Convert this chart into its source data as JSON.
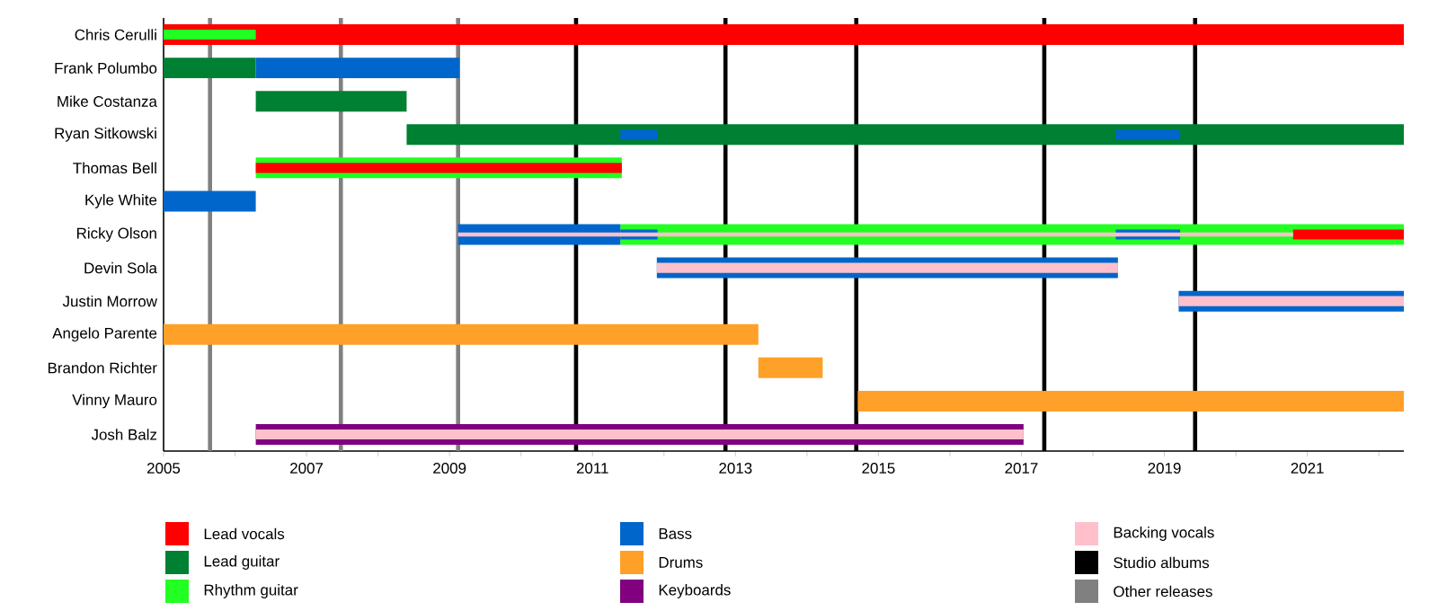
{
  "chart_data": {
    "type": "bar",
    "orientation": "horizontal",
    "legend": "bottom",
    "categories": [
      "Chris Cerulli",
      "Frank Polumbo",
      "Mike Costanza",
      "Ryan Sitkowski",
      "Thomas Bell",
      "Kyle White",
      "Ricky Olson",
      "Devin Sola",
      "Justin Morrow",
      "Angelo Parente",
      "Brandon Richter",
      "Vinny Mauro",
      "Josh Balz"
    ],
    "xlim": [
      2005,
      2022.35
    ],
    "xticks": [
      2005,
      {
        "value": 2006,
        "label": null
      },
      2007,
      {
        "value": 2008,
        "label": null
      },
      2009,
      {
        "value": 2010,
        "label": null
      },
      2011,
      {
        "value": 2012,
        "label": null
      },
      2013,
      {
        "value": 2014,
        "label": null
      },
      2015,
      {
        "value": 2016,
        "label": null
      },
      2017,
      {
        "value": 2018,
        "label": null
      },
      2019,
      {
        "value": 2020,
        "label": null
      },
      2021,
      {
        "value": 2022,
        "label": null
      }
    ],
    "series": [
      {
        "name": "Lead vocals",
        "color": "#ff0000",
        "base": [
          2005,
          null,
          null,
          null,
          null,
          null,
          null,
          null,
          null,
          null,
          null,
          null,
          null
        ],
        "values": [
          17.35,
          null,
          null,
          null,
          null,
          null,
          null,
          null,
          null,
          null,
          null,
          null,
          null
        ]
      },
      {
        "name": "Lead guitar",
        "color": "#008033",
        "base": [
          null,
          2005,
          2006.29,
          2008.4,
          null,
          null,
          null,
          null,
          null,
          null,
          null,
          null,
          null
        ],
        "values": [
          null,
          1.29,
          2.11,
          13.95,
          null,
          null,
          null,
          null,
          null,
          null,
          null,
          null,
          null
        ]
      },
      {
        "name": "Rhythm guitar",
        "color": "#22ff22",
        "base": [
          2005,
          null,
          null,
          null,
          2006.29,
          null,
          2011.39,
          null,
          null,
          null,
          null,
          null,
          null
        ],
        "values": [
          1.29,
          null,
          null,
          null,
          5.12,
          null,
          10.96,
          null,
          null,
          null,
          null,
          null,
          null
        ]
      },
      {
        "name": "Bass",
        "color": "#0066cc",
        "base": [
          null,
          2006.29,
          null,
          2011.39,
          null,
          2005,
          2009.12,
          2011.9,
          2019.2,
          null,
          null,
          null,
          null
        ],
        "values": [
          null,
          2.85,
          null,
          0.52,
          null,
          1.29,
          2.27,
          6.45,
          3.15,
          null,
          null,
          null,
          null
        ]
      },
      {
        "color": "#0066cc",
        "base": [
          null,
          null,
          null,
          2018.32,
          null,
          null,
          2011.39,
          null,
          null,
          null,
          null,
          null,
          null
        ],
        "values": [
          null,
          null,
          null,
          0.9,
          null,
          null,
          0.52,
          null,
          null,
          null,
          null,
          null,
          null
        ]
      },
      {
        "color": "#0066cc",
        "base": [
          null,
          null,
          null,
          null,
          null,
          null,
          2018.32,
          null,
          null,
          null,
          null,
          null,
          null
        ],
        "values": [
          null,
          null,
          null,
          null,
          null,
          null,
          0.9,
          null,
          null,
          null,
          null,
          null,
          null
        ]
      },
      {
        "name": "Drums",
        "color": "#ffa028",
        "base": [
          null,
          null,
          null,
          null,
          null,
          null,
          null,
          null,
          null,
          2005,
          2013.32,
          2014.71,
          null
        ],
        "values": [
          null,
          null,
          null,
          null,
          null,
          null,
          null,
          null,
          null,
          8.32,
          0.9,
          7.64,
          null
        ]
      },
      {
        "name": "Keyboards",
        "color": "#800080",
        "base": [
          null,
          null,
          null,
          null,
          null,
          null,
          null,
          null,
          null,
          null,
          null,
          null,
          2006.29
        ],
        "values": [
          null,
          null,
          null,
          null,
          null,
          null,
          null,
          null,
          null,
          null,
          null,
          null,
          10.74
        ]
      },
      {
        "color": "#ff0000",
        "base": [
          null,
          null,
          null,
          null,
          2006.29,
          null,
          2020.8,
          null,
          null,
          null,
          null,
          null,
          null
        ],
        "values": [
          null,
          null,
          null,
          null,
          5.12,
          null,
          1.55,
          null,
          null,
          null,
          null,
          null,
          null
        ]
      },
      {
        "name": "Backing vocals",
        "color": "#ffc0cb",
        "base": [
          null,
          null,
          null,
          null,
          null,
          null,
          2009.12,
          2011.9,
          2019.2,
          null,
          null,
          null,
          2006.29
        ],
        "values": [
          null,
          null,
          null,
          null,
          null,
          null,
          11.68,
          6.45,
          3.15,
          null,
          null,
          null,
          10.74
        ]
      }
    ],
    "ref_lines": [
      {
        "axis": "x",
        "value": 2010.77,
        "label": "Studio albums",
        "color": "#000000"
      },
      {
        "axis": "x",
        "value": 2012.86,
        "color": "#000000"
      },
      {
        "axis": "x",
        "value": 2014.69,
        "color": "#000000"
      },
      {
        "axis": "x",
        "value": 2017.32,
        "color": "#000000"
      },
      {
        "axis": "x",
        "value": 2019.43,
        "color": "#000000"
      },
      {
        "axis": "x",
        "value": 2005.65,
        "label": "Other releases",
        "color": "#808080"
      },
      {
        "axis": "x",
        "value": 2007.48,
        "color": "#808080"
      },
      {
        "axis": "x",
        "value": 2009.12,
        "color": "#808080"
      }
    ]
  }
}
